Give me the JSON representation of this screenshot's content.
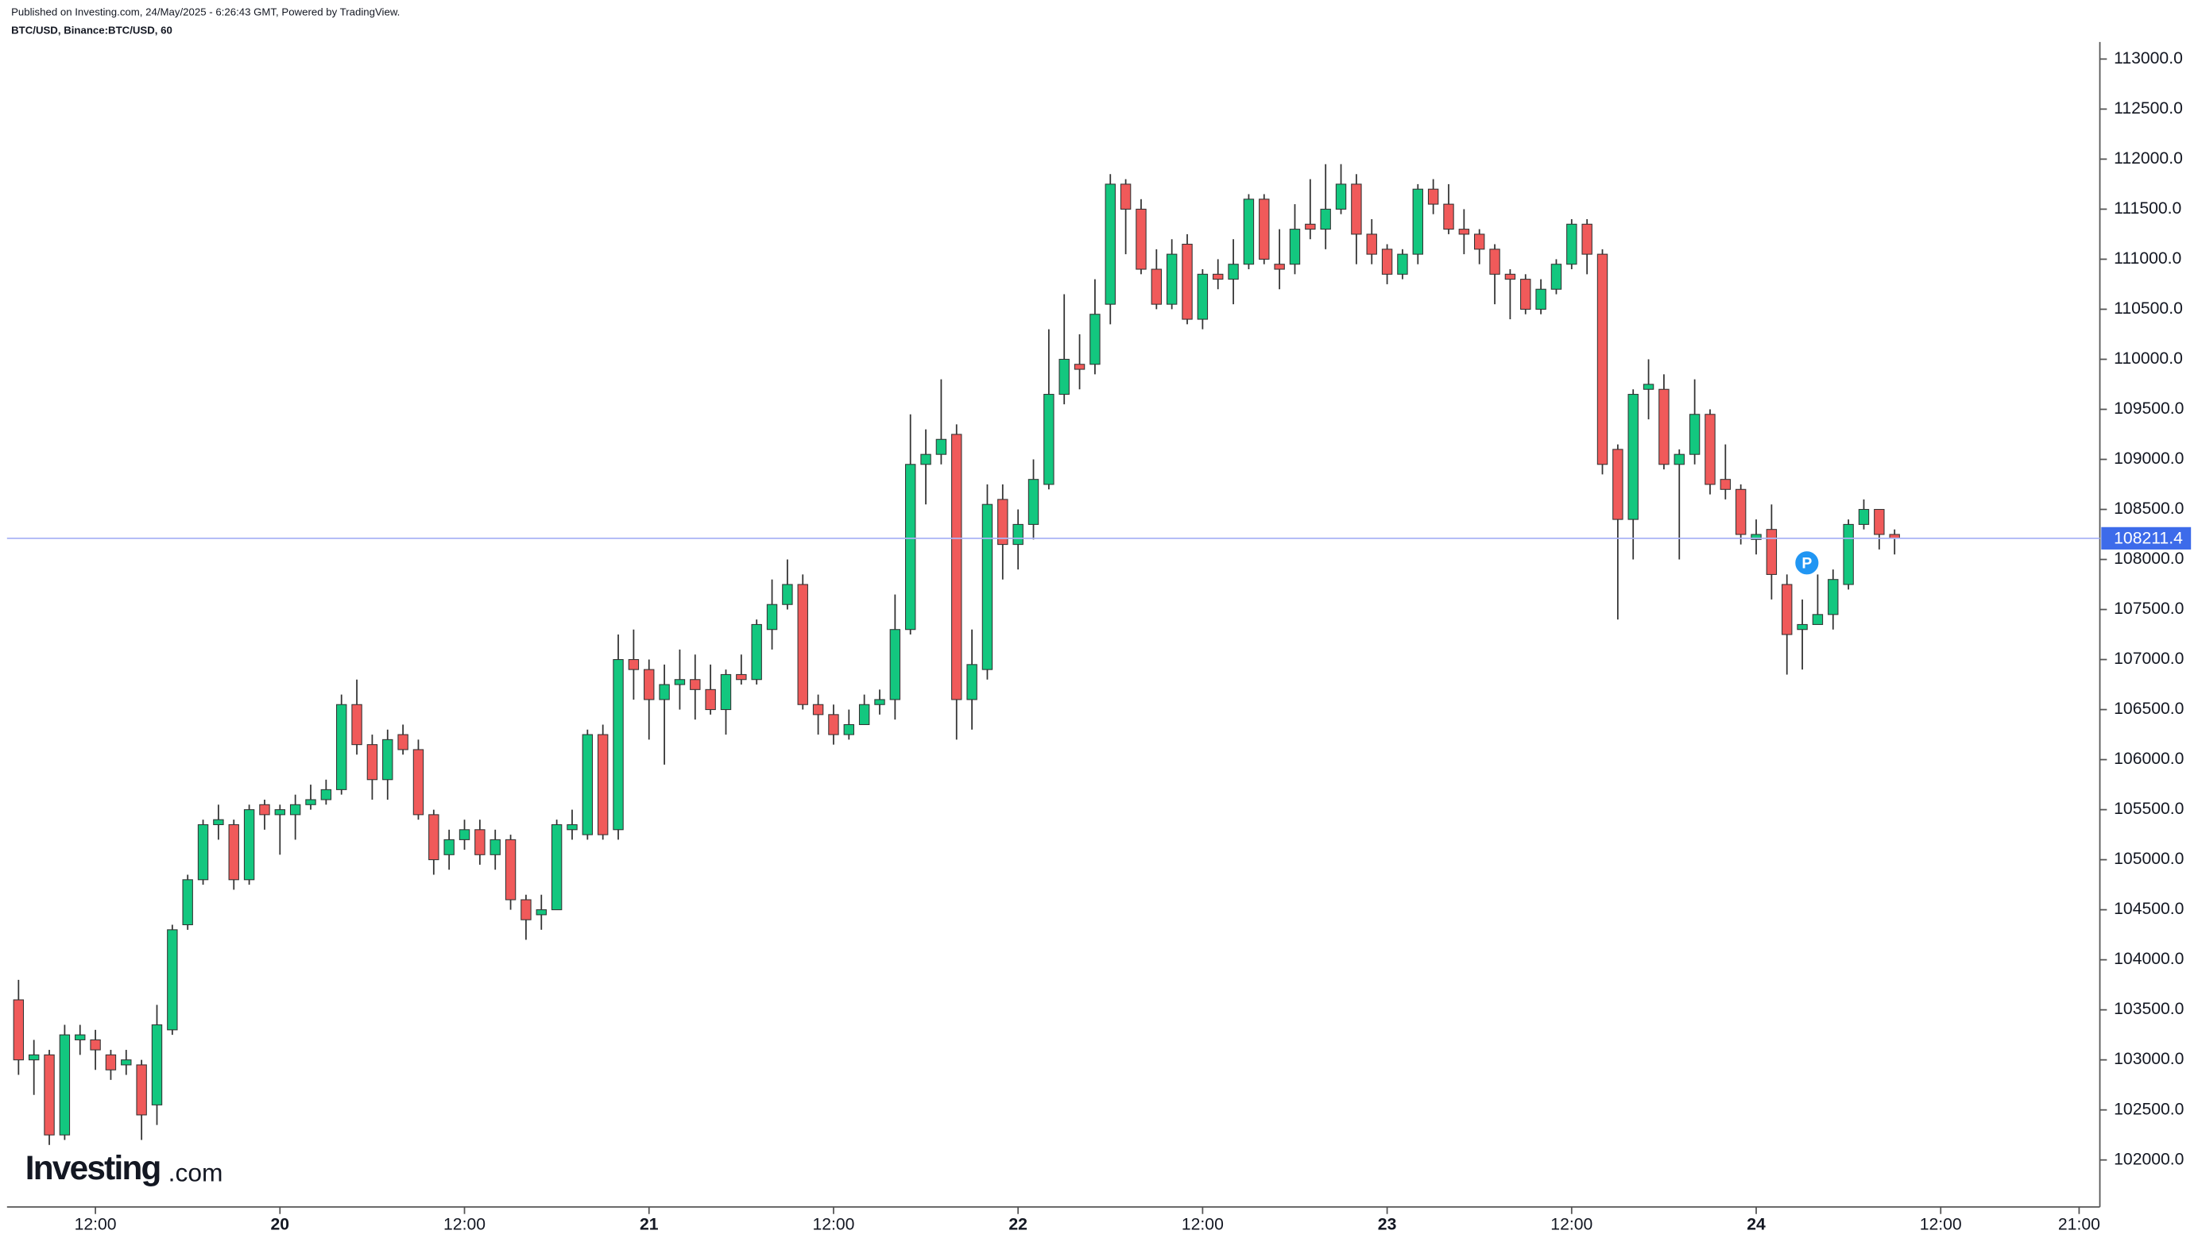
{
  "header": {
    "published": "Published on Investing.com, 24/May/2025 - 6:26:43 GMT, Powered by TradingView.",
    "symbol": "BTC/USD, Binance:BTC/USD, 60"
  },
  "logo": {
    "name": "Investing",
    "suffix": ".com"
  },
  "chart_data": {
    "type": "candlestick",
    "up_color": "#13c77f",
    "down_color": "#f05a5a",
    "wick_color": "#333333",
    "last_price": 108211.4,
    "last_price_color": "#3d6bea",
    "annotations": [
      "P"
    ],
    "xlim": [
      -0.75,
      135.35
    ],
    "xticks": [
      {
        "value": 5,
        "label": "12:00"
      },
      {
        "value": 17,
        "label": "20"
      },
      {
        "value": 29,
        "label": "12:00"
      },
      {
        "value": 41,
        "label": "21"
      },
      {
        "value": 53,
        "label": "12:00"
      },
      {
        "value": 65,
        "label": "22"
      },
      {
        "value": 77,
        "label": "12:00"
      },
      {
        "value": 89,
        "label": "23"
      },
      {
        "value": 101,
        "label": "12:00"
      },
      {
        "value": 113,
        "label": "24"
      },
      {
        "value": 125,
        "label": "12:00"
      },
      {
        "value": 134,
        "label": "21:00"
      }
    ],
    "ylim": [
      101530,
      113590
    ],
    "yticks": [
      {
        "value": 102000,
        "label": "102000.0"
      },
      {
        "value": 102500,
        "label": "102500.0"
      },
      {
        "value": 103000,
        "label": "103000.0"
      },
      {
        "value": 103500,
        "label": "103500.0"
      },
      {
        "value": 104000,
        "label": "104000.0"
      },
      {
        "value": 104500,
        "label": "104500.0"
      },
      {
        "value": 105000,
        "label": "105000.0"
      },
      {
        "value": 105500,
        "label": "105500.0"
      },
      {
        "value": 106000,
        "label": "106000.0"
      },
      {
        "value": 106500,
        "label": "106500.0"
      },
      {
        "value": 107000,
        "label": "107000.0"
      },
      {
        "value": 107500,
        "label": "107500.0"
      },
      {
        "value": 108000,
        "label": "108000.0"
      },
      {
        "value": 108500,
        "label": "108500.0"
      },
      {
        "value": 109000,
        "label": "109000.0"
      },
      {
        "value": 109500,
        "label": "109500.0"
      },
      {
        "value": 110000,
        "label": "110000.0"
      },
      {
        "value": 110500,
        "label": "110500.0"
      },
      {
        "value": 111000,
        "label": "111000.0"
      },
      {
        "value": 111500,
        "label": "111500.0"
      },
      {
        "value": 112000,
        "label": "112000.0"
      },
      {
        "value": 112500,
        "label": "112500.0"
      },
      {
        "value": 113000,
        "label": "113000.0"
      }
    ],
    "x": [
      0,
      1,
      2,
      3,
      4,
      5,
      6,
      7,
      8,
      9,
      10,
      11,
      12,
      13,
      14,
      15,
      16,
      17,
      18,
      19,
      20,
      21,
      22,
      23,
      24,
      25,
      26,
      27,
      28,
      29,
      30,
      31,
      32,
      33,
      34,
      35,
      36,
      37,
      38,
      39,
      40,
      41,
      42,
      43,
      44,
      45,
      46,
      47,
      48,
      49,
      50,
      51,
      52,
      53,
      54,
      55,
      56,
      57,
      58,
      59,
      60,
      61,
      62,
      63,
      64,
      65,
      66,
      67,
      68,
      69,
      70,
      71,
      72,
      73,
      74,
      75,
      76,
      77,
      78,
      79,
      80,
      81,
      82,
      83,
      84,
      85,
      86,
      87,
      88,
      89,
      90,
      91,
      92,
      93,
      94,
      95,
      96,
      97,
      98,
      99,
      100,
      101,
      102,
      103,
      104,
      105,
      106,
      107,
      108,
      109,
      110,
      111,
      112,
      113,
      114,
      115,
      116,
      117,
      118,
      119,
      120,
      121,
      122
    ],
    "open": [
      103600,
      103000,
      103050,
      102250,
      103200,
      103200,
      103050,
      102950,
      102950,
      102550,
      103300,
      104350,
      104800,
      105350,
      105350,
      104800,
      105550,
      105450,
      105450,
      105550,
      105600,
      105700,
      106550,
      106150,
      105800,
      106250,
      106100,
      105450,
      105050,
      105200,
      105300,
      105050,
      105200,
      104600,
      104450,
      104500,
      105300,
      105250,
      106250,
      105300,
      107000,
      106900,
      106600,
      106750,
      106800,
      106700,
      106500,
      106850,
      106800,
      107300,
      107550,
      107750,
      106550,
      106450,
      106250,
      106350,
      106550,
      106600,
      107300,
      108950,
      109050,
      109250,
      106600,
      106900,
      108600,
      108150,
      108350,
      108750,
      109650,
      109950,
      109950,
      110550,
      111750,
      111500,
      110900,
      110550,
      111150,
      110400,
      110850,
      110800,
      110950,
      111600,
      110950,
      110950,
      111350,
      111300,
      111500,
      111750,
      111250,
      111100,
      110850,
      111050,
      111700,
      111550,
      111300,
      111250,
      111100,
      110850,
      110800,
      110500,
      110700,
      110950,
      111350,
      111050,
      109100,
      108400,
      109700,
      109700,
      108950,
      109050,
      109450,
      108800,
      108700,
      108200,
      108300,
      107750,
      107300,
      107350,
      107450,
      107750,
      108350,
      108500,
      108250
    ],
    "high": [
      103800,
      103200,
      103100,
      103350,
      103350,
      103300,
      103100,
      103100,
      103000,
      103550,
      104350,
      104850,
      105400,
      105550,
      105400,
      105550,
      105600,
      105550,
      105650,
      105750,
      105800,
      106650,
      106800,
      106250,
      106300,
      106350,
      106200,
      105500,
      105300,
      105400,
      105400,
      105300,
      105250,
      104650,
      104650,
      105400,
      105500,
      106300,
      106350,
      107250,
      107300,
      107000,
      106950,
      107100,
      107050,
      106950,
      106900,
      107050,
      107400,
      107800,
      108000,
      107850,
      106650,
      106550,
      106500,
      106650,
      106700,
      107650,
      109450,
      109300,
      109800,
      109350,
      107300,
      108750,
      108750,
      108500,
      109000,
      110300,
      110650,
      110250,
      110800,
      111850,
      111800,
      111600,
      111100,
      111200,
      111250,
      110900,
      111000,
      111200,
      111650,
      111650,
      111300,
      111550,
      111800,
      111950,
      111950,
      111850,
      111400,
      111150,
      111100,
      111750,
      111800,
      111750,
      111500,
      111300,
      111150,
      110900,
      110850,
      110800,
      111000,
      111400,
      111400,
      111100,
      109150,
      109700,
      110000,
      109850,
      109100,
      109800,
      109500,
      109150,
      108750,
      108400,
      108550,
      107850,
      107600,
      107850,
      107900,
      108400,
      108600,
      108500,
      108300
    ],
    "low": [
      102850,
      102650,
      102150,
      102200,
      103050,
      102900,
      102800,
      102850,
      102200,
      102350,
      103250,
      104300,
      104750,
      105200,
      104700,
      104750,
      105300,
      105050,
      105200,
      105500,
      105550,
      105650,
      106050,
      105600,
      105600,
      106050,
      105400,
      104850,
      104900,
      105100,
      104950,
      104900,
      104500,
      104200,
      104300,
      104500,
      105200,
      105200,
      105200,
      105200,
      106600,
      106200,
      105950,
      106500,
      106400,
      106450,
      106250,
      106750,
      106750,
      107100,
      107500,
      106500,
      106250,
      106150,
      106200,
      106350,
      106450,
      106400,
      107250,
      108550,
      108950,
      106200,
      106300,
      106800,
      107800,
      107900,
      108200,
      108700,
      109550,
      109700,
      109850,
      110350,
      111050,
      110850,
      110500,
      110500,
      110350,
      110300,
      110700,
      110550,
      110900,
      110950,
      110700,
      110850,
      111200,
      111100,
      111450,
      110950,
      110950,
      110750,
      110800,
      110950,
      111450,
      111250,
      111050,
      110950,
      110550,
      110400,
      110450,
      110450,
      110650,
      110900,
      110850,
      108850,
      107400,
      108000,
      109400,
      108900,
      108000,
      108950,
      108650,
      108600,
      108150,
      108050,
      107600,
      106850,
      106900,
      107350,
      107300,
      107700,
      108300,
      108100,
      108050
    ],
    "close": [
      103000,
      103050,
      102250,
      103250,
      103250,
      103100,
      102900,
      103000,
      102450,
      103350,
      104300,
      104800,
      105350,
      105400,
      104800,
      105500,
      105450,
      105500,
      105550,
      105600,
      105700,
      106550,
      106150,
      105800,
      106200,
      106100,
      105450,
      105000,
      105200,
      105300,
      105050,
      105200,
      104600,
      104400,
      104500,
      105350,
      105350,
      106250,
      105250,
      107000,
      106900,
      106600,
      106750,
      106800,
      106700,
      106500,
      106850,
      106800,
      107350,
      107550,
      107750,
      106550,
      106450,
      106250,
      106350,
      106550,
      106600,
      107300,
      108950,
      109050,
      109200,
      106600,
      106950,
      108550,
      108150,
      108350,
      108800,
      109650,
      110000,
      109900,
      110450,
      111750,
      111500,
      110900,
      110550,
      111050,
      110400,
      110850,
      110800,
      110950,
      111600,
      111000,
      110900,
      111300,
      111300,
      111500,
      111750,
      111250,
      111050,
      110850,
      111050,
      111700,
      111550,
      111300,
      111250,
      111100,
      110850,
      110800,
      110500,
      110700,
      110950,
      111350,
      111050,
      108950,
      108400,
      109650,
      109750,
      108950,
      109050,
      109450,
      108750,
      108700,
      108250,
      108250,
      107850,
      107250,
      107350,
      107450,
      107800,
      108350,
      108500,
      108250,
      108211.4
    ]
  }
}
